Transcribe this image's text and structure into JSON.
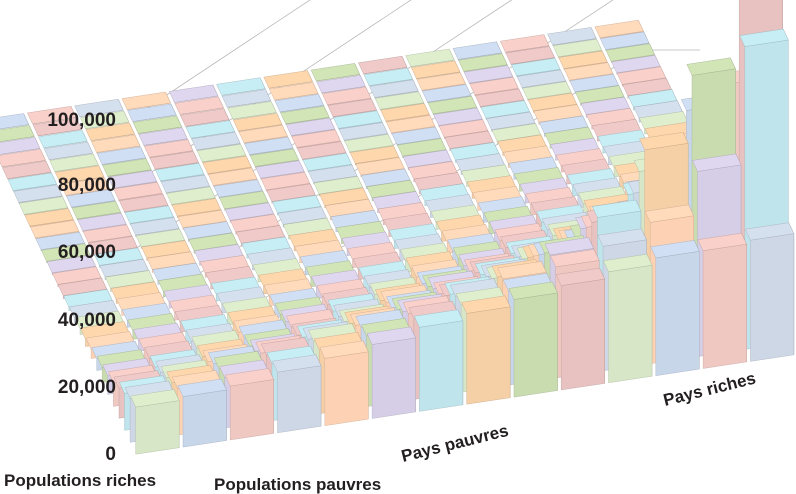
{
  "chart_data": {
    "type": "bar",
    "subtype": "3d-bar-grid",
    "title": "",
    "y_axis": {
      "ticks": [
        "0",
        "20,000",
        "40,000",
        "60,000",
        "80,000",
        "100,000"
      ],
      "tick_values": [
        0,
        20000,
        40000,
        60000,
        80000,
        100000
      ],
      "ylim": [
        0,
        120000
      ],
      "grid": true
    },
    "x_axis": {
      "start_label": "Pays pauvres",
      "end_label": "Pays riches"
    },
    "depth_axis": {
      "start_label": "Populations riches",
      "end_label": "Populations pauvres"
    },
    "grid_size": {
      "countries": 28,
      "population_groups": 14
    },
    "values_by_country_front_to_back": [
      [
        14000,
        15000,
        16000,
        18000,
        20000,
        22000,
        25000,
        27000,
        29000,
        31000,
        33000,
        35000,
        35000,
        36000
      ],
      [
        13000,
        14000,
        15000,
        17000,
        19000,
        21000,
        24000,
        26000,
        28000,
        33000,
        37000,
        42000,
        55000,
        90000
      ],
      [
        11000,
        12000,
        14000,
        16000,
        18000,
        20000,
        22000,
        25000,
        28000,
        33000,
        42000,
        60000,
        80000,
        118000
      ],
      [
        9000,
        10000,
        12000,
        13000,
        15000,
        17000,
        19000,
        22000,
        25000,
        30000,
        37000,
        50000,
        66000,
        72000
      ],
      [
        7000,
        8000,
        9000,
        10000,
        12000,
        14000,
        16000,
        18000,
        21000,
        26000,
        32000,
        40000,
        52000,
        58000
      ],
      [
        5500,
        6000,
        7000,
        8000,
        9000,
        11000,
        13000,
        15000,
        18000,
        22000,
        28000,
        36000,
        46000,
        50000
      ],
      [
        4500,
        5000,
        6000,
        7000,
        8000,
        9000,
        11000,
        13000,
        15000,
        18000,
        22000,
        27000,
        33000,
        38000
      ],
      [
        3500,
        4000,
        4500,
        5000,
        6000,
        7000,
        8000,
        10000,
        12000,
        14000,
        17000,
        21000,
        25000,
        28000
      ],
      [
        2800,
        3200,
        3600,
        4000,
        4600,
        5300,
        6200,
        7400,
        9000,
        11000,
        13500,
        16500,
        20000,
        23000
      ],
      [
        2200,
        2500,
        2800,
        3200,
        3600,
        4200,
        4900,
        5800,
        7000,
        8500,
        10500,
        13000,
        16000,
        18000
      ],
      [
        1800,
        2000,
        2300,
        2600,
        2900,
        3400,
        3900,
        4600,
        5500,
        6700,
        8200,
        10000,
        12500,
        14000
      ],
      [
        1400,
        1600,
        1800,
        2000,
        2300,
        2600,
        3000,
        3600,
        4300,
        5200,
        6400,
        7800,
        9500,
        11000
      ],
      [
        1100,
        1200,
        1400,
        1600,
        1800,
        2100,
        2400,
        2800,
        3400,
        4100,
        5000,
        6100,
        7500,
        8500
      ],
      [
        900,
        1000,
        1100,
        1300,
        1400,
        1600,
        1900,
        2200,
        2700,
        3200,
        3900,
        4800,
        5900,
        6500
      ],
      [
        700,
        800,
        900,
        1000,
        1100,
        1300,
        1500,
        1800,
        2100,
        2500,
        3100,
        3800,
        4600,
        5000
      ],
      [
        600,
        650,
        700,
        800,
        900,
        1000,
        1200,
        1400,
        1700,
        2000,
        2400,
        3000,
        3600,
        4000
      ],
      [
        450,
        500,
        550,
        650,
        700,
        800,
        950,
        1100,
        1300,
        1600,
        1900,
        2300,
        2800,
        3100
      ],
      [
        350,
        400,
        450,
        500,
        550,
        650,
        750,
        900,
        1050,
        1250,
        1500,
        1800,
        2200,
        2400
      ],
      [
        300,
        320,
        350,
        400,
        450,
        500,
        600,
        700,
        800,
        1000,
        1200,
        1400,
        1700,
        1900
      ],
      [
        250,
        260,
        280,
        320,
        350,
        400,
        450,
        550,
        650,
        750,
        900,
        1100,
        1300,
        1500
      ],
      [
        200,
        210,
        230,
        250,
        280,
        320,
        360,
        420,
        500,
        600,
        700,
        850,
        1000,
        1150
      ],
      [
        160,
        170,
        180,
        200,
        220,
        250,
        280,
        330,
        390,
        460,
        550,
        650,
        780,
        900
      ],
      [
        130,
        140,
        150,
        160,
        180,
        200,
        220,
        260,
        300,
        360,
        420,
        500,
        600,
        700
      ],
      [
        100,
        110,
        120,
        130,
        140,
        160,
        180,
        200,
        240,
        280,
        330,
        390,
        460,
        540
      ],
      [
        80,
        85,
        90,
        100,
        110,
        120,
        140,
        160,
        180,
        210,
        250,
        300,
        350,
        400
      ],
      [
        60,
        65,
        70,
        80,
        85,
        95,
        110,
        120,
        140,
        160,
        190,
        220,
        260,
        300
      ],
      [
        50,
        52,
        55,
        60,
        65,
        72,
        80,
        90,
        100,
        120,
        140,
        160,
        190,
        220
      ],
      [
        40,
        42,
        45,
        48,
        52,
        56,
        62,
        70,
        80,
        90,
        105,
        120,
        140,
        160
      ]
    ],
    "palette": [
      "#d6e6c6",
      "#c8d6ea",
      "#f0c8c2",
      "#cdd7e6",
      "#fdd2b4",
      "#d6cee6",
      "#bfe4ec",
      "#f5cfa6",
      "#c9dcb0",
      "#e7c2c0"
    ]
  }
}
